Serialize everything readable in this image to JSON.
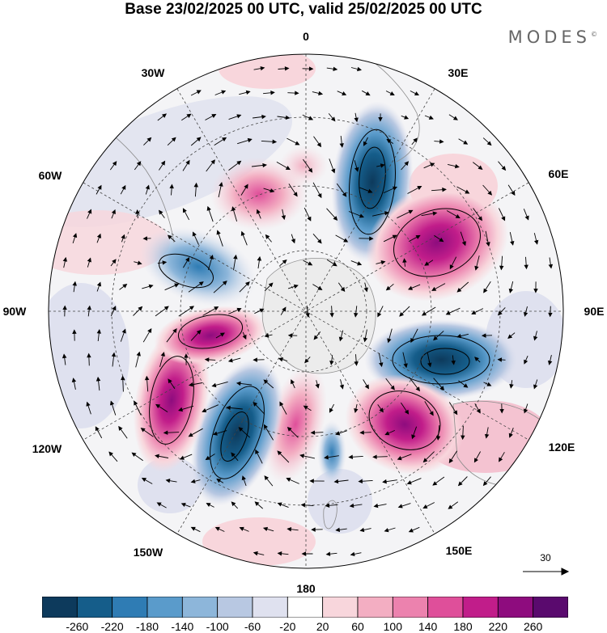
{
  "title": "Base 23/02/2025 00 UTC, valid 25/02/2025 00 UTC",
  "brand": "MODES",
  "brand_mark": "©",
  "map": {
    "projection": "south-polar-stereographic",
    "longitude_labels": {
      "top": "0",
      "top_right": "30E",
      "right_upper": "60E",
      "right": "90E",
      "right_lower": "120E",
      "bottom_right": "150E",
      "bottom": "180",
      "bottom_left": "150W",
      "left_lower": "120W",
      "left": "90W",
      "left_upper": "60W",
      "top_left": "30W"
    },
    "reference_vector_label": "30",
    "anomaly_centers": [
      {
        "name": "neg-30E",
        "value": -260
      },
      {
        "name": "pos-60E",
        "value": 220
      },
      {
        "name": "neg-90E",
        "value": -260
      },
      {
        "name": "pos-120E",
        "value": 220
      },
      {
        "name": "pos-170W",
        "value": 140
      },
      {
        "name": "neg-150W",
        "value": -260
      },
      {
        "name": "pos-120W",
        "value": 220
      },
      {
        "name": "pos-100W",
        "value": 220
      },
      {
        "name": "neg-70W",
        "value": -180
      },
      {
        "name": "pos-20W",
        "value": 100
      }
    ]
  },
  "colorbar": {
    "colors": [
      "#0d3a5c",
      "#155d8a",
      "#2f7cb4",
      "#5a9bcb",
      "#8db6da",
      "#b8c8e2",
      "#dfe1ef",
      "#ffffff",
      "#f8d6dc",
      "#f3aec2",
      "#ec82ae",
      "#df4f9a",
      "#c11d8a",
      "#8e0c7e",
      "#5a0a6e"
    ],
    "tick_labels": [
      "-260",
      "-220",
      "-180",
      "-140",
      "-100",
      "-60",
      "-20",
      "20",
      "60",
      "100",
      "140",
      "180",
      "220",
      "260"
    ]
  }
}
